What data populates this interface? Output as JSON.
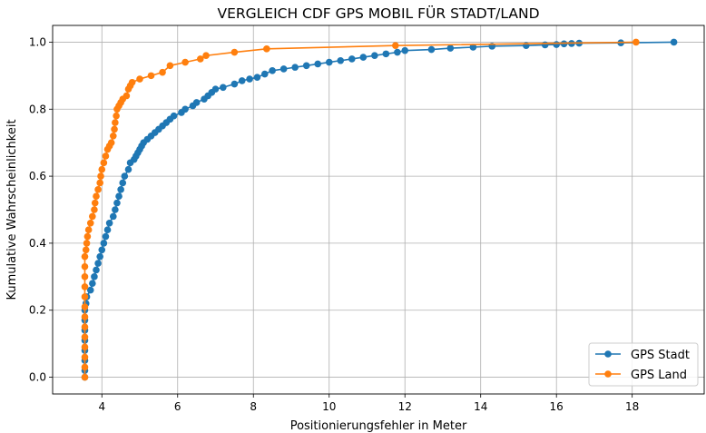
{
  "chart_data": {
    "type": "line",
    "title": "VERGLEICH CDF GPS MOBIL FÜR STADT/LAND",
    "xlabel": "Positionierungsfehler in Meter",
    "ylabel": "Kumulative Wahrscheinlichkeit",
    "xlim": [
      2.7,
      19.9
    ],
    "ylim": [
      -0.05,
      1.05
    ],
    "xticks": [
      4,
      6,
      8,
      10,
      12,
      14,
      16,
      18
    ],
    "yticks": [
      0.0,
      0.2,
      0.4,
      0.6,
      0.8,
      1.0
    ],
    "xtick_labels": [
      "4",
      "6",
      "8",
      "10",
      "12",
      "14",
      "16",
      "18"
    ],
    "ytick_labels": [
      "0.0",
      "0.2",
      "0.4",
      "0.6",
      "0.8",
      "1.0"
    ],
    "grid": true,
    "legend_position": "lower-right",
    "series": [
      {
        "name": "GPS Stadt",
        "color": "#1f77b4",
        "marker": "circle",
        "points": [
          [
            3.55,
            0.0
          ],
          [
            3.55,
            0.02
          ],
          [
            3.55,
            0.05
          ],
          [
            3.55,
            0.08
          ],
          [
            3.55,
            0.11
          ],
          [
            3.55,
            0.14
          ],
          [
            3.55,
            0.17
          ],
          [
            3.55,
            0.2
          ],
          [
            3.58,
            0.22
          ],
          [
            3.6,
            0.24
          ],
          [
            3.7,
            0.26
          ],
          [
            3.75,
            0.28
          ],
          [
            3.8,
            0.3
          ],
          [
            3.85,
            0.32
          ],
          [
            3.9,
            0.34
          ],
          [
            3.95,
            0.36
          ],
          [
            4.0,
            0.38
          ],
          [
            4.05,
            0.4
          ],
          [
            4.1,
            0.42
          ],
          [
            4.15,
            0.44
          ],
          [
            4.2,
            0.46
          ],
          [
            4.3,
            0.48
          ],
          [
            4.35,
            0.5
          ],
          [
            4.4,
            0.52
          ],
          [
            4.45,
            0.54
          ],
          [
            4.5,
            0.56
          ],
          [
            4.55,
            0.58
          ],
          [
            4.6,
            0.6
          ],
          [
            4.7,
            0.62
          ],
          [
            4.75,
            0.64
          ],
          [
            4.85,
            0.65
          ],
          [
            4.9,
            0.66
          ],
          [
            4.95,
            0.67
          ],
          [
            5.0,
            0.68
          ],
          [
            5.05,
            0.69
          ],
          [
            5.1,
            0.7
          ],
          [
            5.2,
            0.71
          ],
          [
            5.3,
            0.72
          ],
          [
            5.4,
            0.73
          ],
          [
            5.5,
            0.74
          ],
          [
            5.6,
            0.75
          ],
          [
            5.7,
            0.76
          ],
          [
            5.8,
            0.77
          ],
          [
            5.9,
            0.78
          ],
          [
            6.1,
            0.79
          ],
          [
            6.2,
            0.8
          ],
          [
            6.4,
            0.81
          ],
          [
            6.5,
            0.82
          ],
          [
            6.7,
            0.83
          ],
          [
            6.8,
            0.84
          ],
          [
            6.9,
            0.85
          ],
          [
            7.0,
            0.86
          ],
          [
            7.2,
            0.865
          ],
          [
            7.5,
            0.875
          ],
          [
            7.7,
            0.885
          ],
          [
            7.9,
            0.89
          ],
          [
            8.1,
            0.895
          ],
          [
            8.3,
            0.905
          ],
          [
            8.5,
            0.915
          ],
          [
            8.8,
            0.92
          ],
          [
            9.1,
            0.925
          ],
          [
            9.4,
            0.93
          ],
          [
            9.7,
            0.935
          ],
          [
            10.0,
            0.94
          ],
          [
            10.3,
            0.945
          ],
          [
            10.6,
            0.95
          ],
          [
            10.9,
            0.955
          ],
          [
            11.2,
            0.96
          ],
          [
            11.5,
            0.965
          ],
          [
            11.8,
            0.97
          ],
          [
            12.0,
            0.975
          ],
          [
            12.7,
            0.978
          ],
          [
            13.2,
            0.982
          ],
          [
            13.8,
            0.985
          ],
          [
            14.3,
            0.988
          ],
          [
            15.2,
            0.99
          ],
          [
            15.7,
            0.992
          ],
          [
            16.0,
            0.993
          ],
          [
            16.2,
            0.995
          ],
          [
            16.4,
            0.996
          ],
          [
            16.6,
            0.997
          ],
          [
            17.7,
            0.998
          ],
          [
            19.1,
            1.0
          ]
        ]
      },
      {
        "name": "GPS Land",
        "color": "#ff7f0e",
        "marker": "circle",
        "points": [
          [
            3.55,
            0.0
          ],
          [
            3.55,
            0.03
          ],
          [
            3.55,
            0.06
          ],
          [
            3.55,
            0.09
          ],
          [
            3.55,
            0.12
          ],
          [
            3.55,
            0.15
          ],
          [
            3.55,
            0.18
          ],
          [
            3.55,
            0.21
          ],
          [
            3.55,
            0.24
          ],
          [
            3.55,
            0.27
          ],
          [
            3.55,
            0.3
          ],
          [
            3.55,
            0.33
          ],
          [
            3.55,
            0.36
          ],
          [
            3.58,
            0.38
          ],
          [
            3.6,
            0.4
          ],
          [
            3.62,
            0.42
          ],
          [
            3.65,
            0.44
          ],
          [
            3.7,
            0.46
          ],
          [
            3.75,
            0.48
          ],
          [
            3.8,
            0.5
          ],
          [
            3.82,
            0.52
          ],
          [
            3.85,
            0.54
          ],
          [
            3.9,
            0.56
          ],
          [
            3.95,
            0.58
          ],
          [
            3.97,
            0.6
          ],
          [
            4.0,
            0.62
          ],
          [
            4.05,
            0.64
          ],
          [
            4.1,
            0.66
          ],
          [
            4.15,
            0.68
          ],
          [
            4.2,
            0.69
          ],
          [
            4.25,
            0.7
          ],
          [
            4.3,
            0.72
          ],
          [
            4.33,
            0.74
          ],
          [
            4.35,
            0.76
          ],
          [
            4.38,
            0.78
          ],
          [
            4.4,
            0.8
          ],
          [
            4.45,
            0.81
          ],
          [
            4.5,
            0.82
          ],
          [
            4.55,
            0.83
          ],
          [
            4.65,
            0.84
          ],
          [
            4.7,
            0.86
          ],
          [
            4.75,
            0.87
          ],
          [
            4.8,
            0.88
          ],
          [
            5.0,
            0.89
          ],
          [
            5.3,
            0.9
          ],
          [
            5.6,
            0.91
          ],
          [
            5.8,
            0.93
          ],
          [
            6.2,
            0.94
          ],
          [
            6.6,
            0.95
          ],
          [
            6.75,
            0.96
          ],
          [
            7.5,
            0.97
          ],
          [
            8.35,
            0.98
          ],
          [
            11.75,
            0.99
          ],
          [
            18.1,
            1.0
          ]
        ]
      }
    ]
  }
}
